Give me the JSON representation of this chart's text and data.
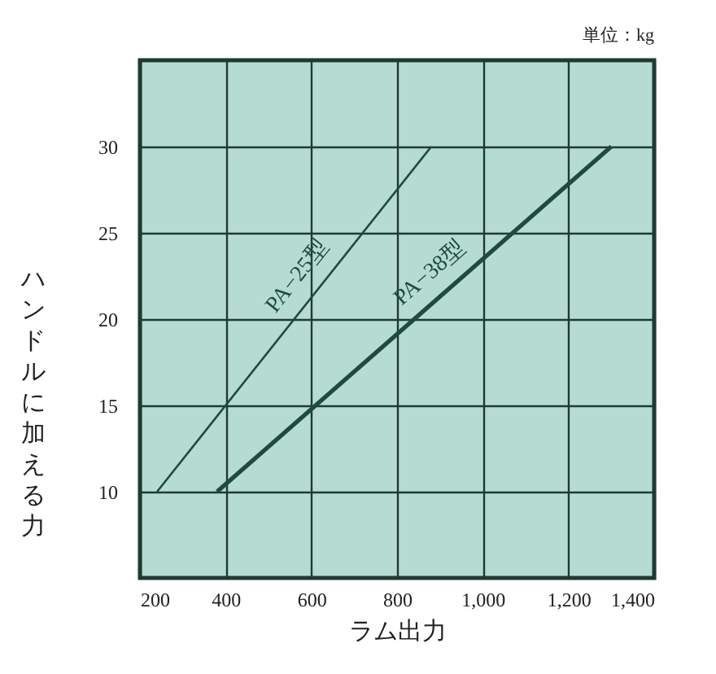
{
  "chart_data": {
    "type": "line",
    "xlabel": "ラム出力",
    "ylabel": "ハンドルに加える力",
    "annotations": [
      "単位：kg"
    ],
    "series": [
      {
        "name": "PA−25型",
        "color": "#1f4a40",
        "x": [
          240,
          880
        ],
        "values": [
          10,
          30
        ]
      },
      {
        "name": "PA−38型",
        "color": "#1f4a40",
        "x": [
          380,
          1300
        ],
        "values": [
          10,
          30
        ]
      }
    ],
    "xlim": [
      200,
      1400
    ],
    "xticks": [
      200,
      400,
      600,
      800,
      {
        "value": 1000,
        "label": "1,000"
      },
      {
        "value": 1200,
        "label": "1,200"
      },
      {
        "value": 1400,
        "label": "1,400"
      }
    ],
    "ylim": [
      5,
      35
    ],
    "yticks": [
      10,
      15,
      20,
      25,
      30
    ],
    "grid": true,
    "marker": "none",
    "line_style": "solid"
  }
}
